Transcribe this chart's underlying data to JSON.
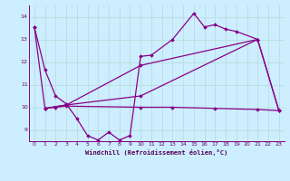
{
  "background_color": "#cceeff",
  "grid_color": "#aadddd",
  "line_color": "#880088",
  "xlabel": "Windchill (Refroidissement éolien,°C)",
  "xlim": [
    -0.5,
    23.5
  ],
  "ylim": [
    8.5,
    14.5
  ],
  "yticks": [
    9,
    10,
    11,
    12,
    13,
    14
  ],
  "xticks": [
    0,
    1,
    2,
    3,
    4,
    5,
    6,
    7,
    8,
    9,
    10,
    11,
    12,
    13,
    14,
    15,
    16,
    17,
    18,
    19,
    20,
    21,
    22,
    23
  ],
  "seriesA_x": [
    0,
    1,
    2,
    3,
    4,
    5,
    6,
    7,
    8,
    9,
    10,
    11,
    13,
    15,
    16,
    17,
    18,
    19,
    21
  ],
  "seriesA_y": [
    13.55,
    11.65,
    10.5,
    10.15,
    9.5,
    8.75,
    8.55,
    8.9,
    8.55,
    8.75,
    12.25,
    12.3,
    13.0,
    14.15,
    13.55,
    13.65,
    13.45,
    13.35,
    13.0
  ],
  "seriesB_x": [
    1,
    3,
    10,
    21,
    23
  ],
  "seriesB_y": [
    9.95,
    10.1,
    11.85,
    13.0,
    9.85
  ],
  "seriesC_x": [
    1,
    2,
    3,
    10,
    13,
    17,
    21,
    23
  ],
  "seriesC_y": [
    9.95,
    10.0,
    10.05,
    10.0,
    10.0,
    9.95,
    9.9,
    9.85
  ],
  "seriesD_x": [
    0,
    1,
    3,
    10,
    21,
    23
  ],
  "seriesD_y": [
    13.55,
    9.95,
    10.1,
    10.5,
    13.0,
    9.85
  ]
}
